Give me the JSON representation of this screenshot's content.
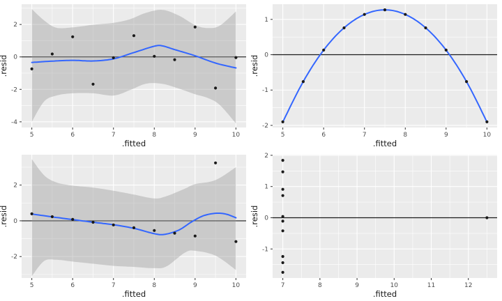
{
  "figure": {
    "description": "2x2 grid of residual diagnostic plots (residuals vs fitted values)",
    "xlabel": ".fitted",
    "ylabel": ".resid"
  },
  "colors": {
    "panel_bg": "#EBEBEB",
    "grid": "#FFFFFF",
    "zero_line": "#1A1A1A",
    "smooth_line": "#3366FF",
    "ribbon": "rgba(153,153,153,0.4)",
    "point": "#1A1A1A",
    "tick_label": "#4D4D4D",
    "axis_title": "#1A1A1A",
    "tick_mark": "#333333"
  },
  "chart_data": [
    {
      "id": "top-left",
      "type": "scatter",
      "xlabel": ".fitted",
      "ylabel": ".resid",
      "x_domain": [
        4.75,
        10.25
      ],
      "y_domain": [
        -4.35,
        3.25
      ],
      "x_ticks": [
        5,
        6,
        7,
        8,
        9,
        10
      ],
      "x_tick_labels": [
        "5",
        "6",
        "7",
        "8",
        "9",
        "10"
      ],
      "y_ticks": [
        -4,
        -2,
        0,
        2
      ],
      "y_tick_labels": [
        "-4",
        "-2",
        "0",
        "2"
      ],
      "x_minor": [
        5.5,
        6.5,
        7.5,
        8.5,
        9.5
      ],
      "y_minor": [
        -3,
        -1,
        1,
        3
      ],
      "zero_line": 0,
      "points": [
        [
          5,
          -0.74
        ],
        [
          5.5,
          0.18
        ],
        [
          6,
          1.24
        ],
        [
          6.5,
          -1.68
        ],
        [
          7,
          -0.05
        ],
        [
          7.5,
          1.31
        ],
        [
          8,
          0.04
        ],
        [
          8.5,
          -0.17
        ],
        [
          9,
          1.84
        ],
        [
          9.5,
          -1.92
        ],
        [
          10,
          -0.04
        ]
      ],
      "smooth": [
        [
          5,
          -0.34
        ],
        [
          5.5,
          -0.26
        ],
        [
          6,
          -0.21
        ],
        [
          6.5,
          -0.25
        ],
        [
          7,
          -0.12
        ],
        [
          7.5,
          0.27
        ],
        [
          8,
          0.66
        ],
        [
          8.2,
          0.68
        ],
        [
          8.5,
          0.45
        ],
        [
          9,
          0.07
        ],
        [
          9.5,
          -0.38
        ],
        [
          10,
          -0.68
        ]
      ],
      "ribbon": {
        "x": [
          5,
          5.3,
          5.6,
          6,
          6.5,
          7,
          7.4,
          7.8,
          8.2,
          8.6,
          9,
          9.3,
          9.6,
          10
        ],
        "upper": [
          2.95,
          2.25,
          1.8,
          1.82,
          1.98,
          2.1,
          2.32,
          2.72,
          2.9,
          2.55,
          1.96,
          1.78,
          1.92,
          2.8
        ],
        "lower": [
          -4.0,
          -2.75,
          -2.38,
          -2.24,
          -2.24,
          -2.38,
          -2.05,
          -1.65,
          -1.66,
          -1.95,
          -2.3,
          -2.52,
          -2.95,
          -4.1
        ]
      }
    },
    {
      "id": "top-right",
      "type": "scatter",
      "xlabel": ".fitted",
      "ylabel": ".resid",
      "x_domain": [
        4.75,
        10.25
      ],
      "y_domain": [
        -2.06,
        1.43
      ],
      "x_ticks": [
        5,
        6,
        7,
        8,
        9,
        10
      ],
      "x_tick_labels": [
        "5",
        "6",
        "7",
        "8",
        "9",
        "10"
      ],
      "y_ticks": [
        -2,
        -1,
        0,
        1
      ],
      "y_tick_labels": [
        "-2",
        "-1",
        "0",
        "1"
      ],
      "x_minor": [
        5.5,
        6.5,
        7.5,
        8.5,
        9.5
      ],
      "y_minor": [
        -1.5,
        -0.5,
        0.5
      ],
      "zero_line": 0,
      "points": [
        [
          5,
          -1.9
        ],
        [
          5.5,
          -0.76
        ],
        [
          6,
          0.13
        ],
        [
          6.5,
          0.76
        ],
        [
          7,
          1.14
        ],
        [
          7.5,
          1.27
        ],
        [
          8,
          1.14
        ],
        [
          8.5,
          0.76
        ],
        [
          9,
          0.13
        ],
        [
          9.5,
          -0.76
        ],
        [
          10,
          -1.9
        ]
      ],
      "smooth": [
        [
          5,
          -1.9
        ],
        [
          5.5,
          -0.76
        ],
        [
          6,
          0.13
        ],
        [
          6.5,
          0.76
        ],
        [
          7,
          1.14
        ],
        [
          7.5,
          1.27
        ],
        [
          8,
          1.14
        ],
        [
          8.5,
          0.76
        ],
        [
          9,
          0.13
        ],
        [
          9.5,
          -0.76
        ],
        [
          10,
          -1.9
        ]
      ],
      "ribbon": null
    },
    {
      "id": "bottom-left",
      "type": "scatter",
      "xlabel": ".fitted",
      "ylabel": ".resid",
      "x_domain": [
        4.75,
        10.25
      ],
      "y_domain": [
        -3.2,
        3.7
      ],
      "x_ticks": [
        5,
        6,
        7,
        8,
        9,
        10
      ],
      "x_tick_labels": [
        "5",
        "6",
        "7",
        "8",
        "9",
        "10"
      ],
      "y_ticks": [
        -2,
        0,
        2
      ],
      "y_tick_labels": [
        "-2",
        "0",
        "2"
      ],
      "x_minor": [
        5.5,
        6.5,
        7.5,
        8.5,
        9.5
      ],
      "y_minor": [
        -3,
        -1,
        1,
        3
      ],
      "zero_line": 0,
      "points": [
        [
          5,
          0.39
        ],
        [
          5.5,
          0.23
        ],
        [
          6,
          0.08
        ],
        [
          6.5,
          -0.08
        ],
        [
          7,
          -0.23
        ],
        [
          7.5,
          -0.39
        ],
        [
          8,
          -0.54
        ],
        [
          8.5,
          -0.69
        ],
        [
          9,
          -0.85
        ],
        [
          9.5,
          3.24
        ],
        [
          10,
          -1.16
        ]
      ],
      "smooth": [
        [
          5,
          0.38
        ],
        [
          5.5,
          0.22
        ],
        [
          6,
          0.07
        ],
        [
          6.5,
          -0.08
        ],
        [
          7,
          -0.22
        ],
        [
          7.5,
          -0.42
        ],
        [
          8,
          -0.72
        ],
        [
          8.25,
          -0.76
        ],
        [
          8.6,
          -0.52
        ],
        [
          8.9,
          -0.08
        ],
        [
          9.2,
          0.28
        ],
        [
          9.5,
          0.42
        ],
        [
          9.75,
          0.38
        ],
        [
          10,
          0.17
        ]
      ],
      "ribbon": {
        "x": [
          5,
          5.3,
          5.6,
          6,
          6.5,
          7,
          7.5,
          8,
          8.3,
          8.75,
          9,
          9.5,
          10
        ],
        "upper": [
          3.45,
          2.55,
          2.15,
          1.97,
          1.86,
          1.68,
          1.47,
          1.25,
          1.38,
          1.8,
          2.05,
          2.28,
          3.0
        ],
        "lower": [
          -3.1,
          -2.25,
          -2.18,
          -2.28,
          -2.4,
          -2.52,
          -2.58,
          -2.65,
          -2.55,
          -1.78,
          -1.68,
          -1.95,
          -2.75
        ]
      }
    },
    {
      "id": "bottom-right",
      "type": "scatter",
      "xlabel": ".fitted",
      "ylabel": ".resid",
      "x_domain": [
        6.725,
        12.775
      ],
      "y_domain": [
        -1.93,
        2.02
      ],
      "x_ticks": [
        7,
        8,
        9,
        10,
        11,
        12
      ],
      "x_tick_labels": [
        "7",
        "8",
        "9",
        "10",
        "11",
        "12"
      ],
      "y_ticks": [
        -1,
        0,
        1,
        2
      ],
      "y_tick_labels": [
        "-1",
        "0",
        "1",
        "2"
      ],
      "x_minor": [
        7.5,
        8.5,
        9.5,
        10.5,
        11.5,
        12.5
      ],
      "y_minor": [
        -1.5,
        -0.5,
        0.5,
        1.5
      ],
      "zero_line": 0,
      "points": [
        [
          7,
          1.84
        ],
        [
          7,
          1.47
        ],
        [
          7,
          0.91
        ],
        [
          7,
          0.71
        ],
        [
          7,
          0.04
        ],
        [
          7,
          -0.11
        ],
        [
          7,
          -0.42
        ],
        [
          7,
          -1.24
        ],
        [
          7,
          -1.44
        ],
        [
          7,
          -1.75
        ],
        [
          12.5,
          0.0
        ]
      ],
      "smooth": null,
      "ribbon": null
    }
  ]
}
